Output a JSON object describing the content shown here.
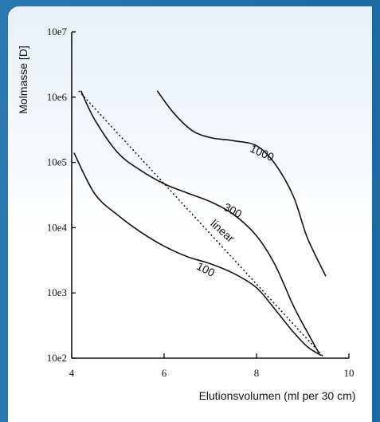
{
  "chart_data": {
    "type": "line",
    "xlabel": "Elutionsvolumen (ml per 30 cm)",
    "ylabel": "Molmasse [D]",
    "xlim": [
      4,
      10
    ],
    "ylim_log10": [
      2,
      7
    ],
    "y_scale": "log",
    "grid": false,
    "x_ticks": [
      "4",
      "6",
      "8",
      "10"
    ],
    "y_ticks": [
      "10e2",
      "10e3",
      "10e4",
      "10e5",
      "10e6",
      "10e7"
    ],
    "series": [
      {
        "name": "1000",
        "style": "solid",
        "points": [
          [
            5.85,
            1250000
          ],
          [
            6.2,
            580000
          ],
          [
            6.6,
            310000
          ],
          [
            7.0,
            240000
          ],
          [
            7.5,
            215000
          ],
          [
            8.0,
            180000
          ],
          [
            8.4,
            95000
          ],
          [
            8.8,
            30000
          ],
          [
            9.1,
            7000
          ],
          [
            9.5,
            1800
          ]
        ]
      },
      {
        "name": "300",
        "style": "solid",
        "points": [
          [
            4.2,
            1250000
          ],
          [
            4.5,
            450000
          ],
          [
            5.0,
            140000
          ],
          [
            5.5,
            75000
          ],
          [
            6.0,
            47000
          ],
          [
            6.5,
            34000
          ],
          [
            7.0,
            25000
          ],
          [
            7.5,
            16000
          ],
          [
            8.0,
            7500
          ],
          [
            8.4,
            2700
          ],
          [
            8.8,
            630
          ],
          [
            9.1,
            250
          ],
          [
            9.35,
            120
          ]
        ]
      },
      {
        "name": "100",
        "style": "solid",
        "points": [
          [
            4.05,
            140000
          ],
          [
            4.5,
            33000
          ],
          [
            5.0,
            15500
          ],
          [
            5.5,
            8500
          ],
          [
            6.0,
            5200
          ],
          [
            6.5,
            3600
          ],
          [
            7.0,
            2800
          ],
          [
            7.5,
            2000
          ],
          [
            8.0,
            1200
          ],
          [
            8.4,
            560
          ],
          [
            8.8,
            250
          ],
          [
            9.1,
            150
          ],
          [
            9.4,
            110
          ]
        ]
      },
      {
        "name": "linear",
        "style": "dotted",
        "points": [
          [
            4.15,
            1250000
          ],
          [
            9.45,
            105
          ]
        ]
      }
    ]
  }
}
